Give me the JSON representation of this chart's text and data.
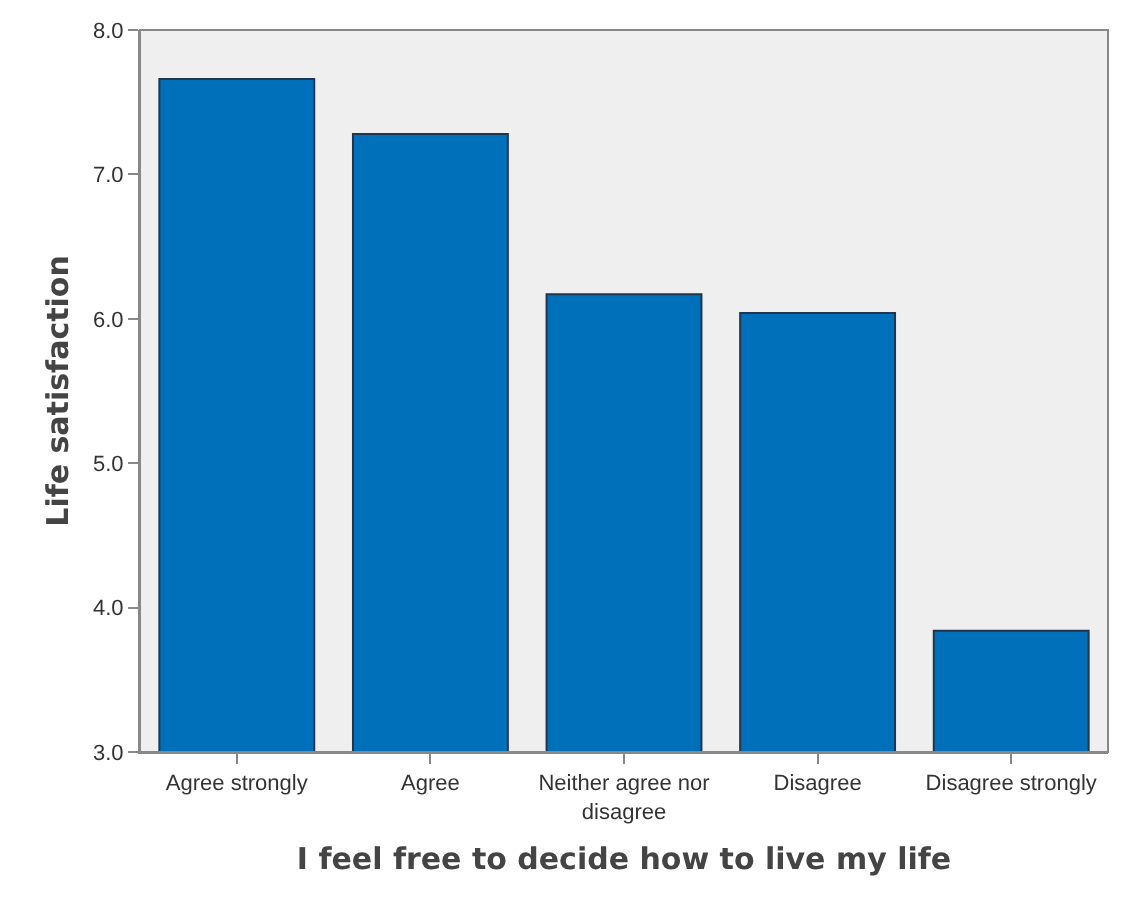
{
  "chart_data": {
    "type": "bar",
    "xlabel": "I feel free to decide how to live my life",
    "ylabel": "Life satisfaction",
    "categories": [
      "Agree strongly",
      "Agree",
      "Neither agree nor disagree",
      "Disagree",
      "Disagree strongly"
    ],
    "values": [
      7.66,
      7.28,
      6.17,
      6.04,
      3.84
    ],
    "color": "#0070bb",
    "ylim": [
      3,
      8
    ],
    "yticks": [
      {
        "value": 3,
        "label": "3.0"
      },
      {
        "value": 4,
        "label": "4.0"
      },
      {
        "value": 5,
        "label": "5.0"
      },
      {
        "value": 6,
        "label": "6.0"
      },
      {
        "value": 7,
        "label": "7.0"
      },
      {
        "value": 8,
        "label": "8.0"
      }
    ],
    "grid": false
  }
}
